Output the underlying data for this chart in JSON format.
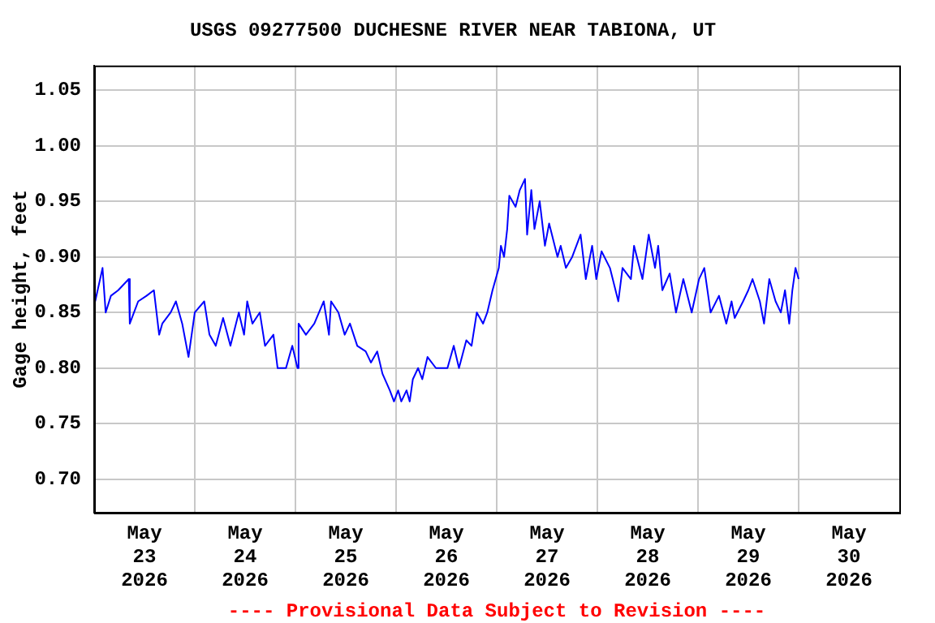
{
  "chart_data": {
    "type": "line",
    "title": "USGS 09277500 DUCHESNE RIVER NEAR TABIONA, UT",
    "ylabel": "Gage height, feet",
    "annotations": [
      "---- Provisional Data Subject to Revision ----"
    ],
    "xlim": [
      "2026-05-23T00:00",
      "2026-05-31T00:00"
    ],
    "xticks": [
      {
        "value": "2026-05-23T12:00",
        "label": "May\n23\n2026"
      },
      {
        "value": "2026-05-24T00:00",
        "label": null
      },
      {
        "value": "2026-05-24T12:00",
        "label": "May\n24\n2026"
      },
      {
        "value": "2026-05-25T00:00",
        "label": null
      },
      {
        "value": "2026-05-25T12:00",
        "label": "May\n25\n2026"
      },
      {
        "value": "2026-05-26T00:00",
        "label": null
      },
      {
        "value": "2026-05-26T12:00",
        "label": "May\n26\n2026"
      },
      {
        "value": "2026-05-27T00:00",
        "label": null
      },
      {
        "value": "2026-05-27T12:00",
        "label": "May\n27\n2026"
      },
      {
        "value": "2026-05-28T00:00",
        "label": null
      },
      {
        "value": "2026-05-28T12:00",
        "label": "May\n28\n2026"
      },
      {
        "value": "2026-05-29T00:00",
        "label": null
      },
      {
        "value": "2026-05-29T12:00",
        "label": "May\n29\n2026"
      },
      {
        "value": "2026-05-30T00:00",
        "label": null
      },
      {
        "value": "2026-05-30T12:00",
        "label": "May\n30\n2026"
      }
    ],
    "ylim": [
      0.67,
      1.072
    ],
    "yticks": [
      {
        "value": 0.7,
        "label": "0.70"
      },
      {
        "value": 0.75,
        "label": "0.75"
      },
      {
        "value": 0.8,
        "label": "0.80"
      },
      {
        "value": 0.85,
        "label": "0.85"
      },
      {
        "value": 0.9,
        "label": "0.90"
      },
      {
        "value": 0.95,
        "label": "0.95"
      },
      {
        "value": 1.0,
        "label": "1.00"
      },
      {
        "value": 1.05,
        "label": "1.05"
      }
    ],
    "grid": true,
    "legend": false,
    "marker": "none",
    "line_style": "solid",
    "series": [
      {
        "color": "#0000ff",
        "x": [
          "2026-05-23T00:15",
          "2026-05-23T02:00",
          "2026-05-23T02:45",
          "2026-05-23T04:00",
          "2026-05-23T05:45",
          "2026-05-23T08:15",
          "2026-05-23T08:30",
          "2026-05-23T10:30",
          "2026-05-23T12:30",
          "2026-05-23T14:15",
          "2026-05-23T15:30",
          "2026-05-23T16:15",
          "2026-05-23T18:15",
          "2026-05-23T19:30",
          "2026-05-23T21:00",
          "2026-05-23T22:30",
          "2026-05-24T00:00",
          "2026-05-24T02:15",
          "2026-05-24T03:30",
          "2026-05-24T05:00",
          "2026-05-24T06:45",
          "2026-05-24T08:30",
          "2026-05-24T10:30",
          "2026-05-24T11:45",
          "2026-05-24T12:30",
          "2026-05-24T13:45",
          "2026-05-24T15:30",
          "2026-05-24T16:45",
          "2026-05-24T18:45",
          "2026-05-24T19:45",
          "2026-05-24T21:45",
          "2026-05-24T23:15",
          "2026-05-25T00:30",
          "2026-05-25T00:45",
          "2026-05-25T02:30",
          "2026-05-25T04:30",
          "2026-05-25T06:45",
          "2026-05-25T08:00",
          "2026-05-25T08:30",
          "2026-05-25T10:15",
          "2026-05-25T11:45",
          "2026-05-25T13:00",
          "2026-05-25T14:45",
          "2026-05-25T16:45",
          "2026-05-25T18:00",
          "2026-05-25T19:30",
          "2026-05-25T20:45",
          "2026-05-25T22:30",
          "2026-05-25T23:30",
          "2026-05-26T00:30",
          "2026-05-26T01:15",
          "2026-05-26T02:30",
          "2026-05-26T03:15",
          "2026-05-26T04:00",
          "2026-05-26T05:15",
          "2026-05-26T06:15",
          "2026-05-26T07:30",
          "2026-05-26T09:30",
          "2026-05-26T12:15",
          "2026-05-26T13:45",
          "2026-05-26T15:00",
          "2026-05-26T16:45",
          "2026-05-26T18:00",
          "2026-05-26T19:15",
          "2026-05-26T20:45",
          "2026-05-26T21:45",
          "2026-05-26T23:00",
          "2026-05-27T00:30",
          "2026-05-27T01:00",
          "2026-05-27T01:45",
          "2026-05-27T02:30",
          "2026-05-27T03:00",
          "2026-05-27T04:30",
          "2026-05-27T05:30",
          "2026-05-27T06:45",
          "2026-05-27T07:15",
          "2026-05-27T08:15",
          "2026-05-27T09:00",
          "2026-05-27T10:15",
          "2026-05-27T11:30",
          "2026-05-27T12:30",
          "2026-05-27T14:30",
          "2026-05-27T15:15",
          "2026-05-27T16:30",
          "2026-05-27T18:00",
          "2026-05-27T20:00",
          "2026-05-27T21:15",
          "2026-05-27T22:45",
          "2026-05-27T23:45",
          "2026-05-28T01:00",
          "2026-05-28T03:00",
          "2026-05-28T05:00",
          "2026-05-28T06:00",
          "2026-05-28T08:00",
          "2026-05-28T08:45",
          "2026-05-28T10:45",
          "2026-05-28T12:15",
          "2026-05-28T13:45",
          "2026-05-28T14:30",
          "2026-05-28T15:30",
          "2026-05-28T17:15",
          "2026-05-28T18:45",
          "2026-05-28T20:30",
          "2026-05-28T22:30",
          "2026-05-29T00:15",
          "2026-05-29T01:30",
          "2026-05-29T03:00",
          "2026-05-29T05:00",
          "2026-05-29T06:45",
          "2026-05-29T08:00",
          "2026-05-29T08:45",
          "2026-05-29T10:45",
          "2026-05-29T12:00",
          "2026-05-29T13:00",
          "2026-05-29T14:45",
          "2026-05-29T15:45",
          "2026-05-29T17:00",
          "2026-05-29T18:30",
          "2026-05-29T19:45",
          "2026-05-29T20:45",
          "2026-05-29T21:45",
          "2026-05-29T22:30",
          "2026-05-29T23:15",
          "2026-05-30T00:00"
        ],
        "values": [
          0.86,
          0.89,
          0.85,
          0.865,
          0.87,
          0.88,
          0.84,
          0.86,
          0.865,
          0.87,
          0.83,
          0.84,
          0.85,
          0.86,
          0.84,
          0.81,
          0.85,
          0.86,
          0.83,
          0.82,
          0.845,
          0.82,
          0.85,
          0.83,
          0.86,
          0.84,
          0.85,
          0.82,
          0.83,
          0.8,
          0.8,
          0.82,
          0.8,
          0.84,
          0.83,
          0.84,
          0.86,
          0.83,
          0.86,
          0.85,
          0.83,
          0.84,
          0.82,
          0.815,
          0.805,
          0.815,
          0.795,
          0.78,
          0.77,
          0.78,
          0.77,
          0.78,
          0.77,
          0.79,
          0.8,
          0.79,
          0.81,
          0.8,
          0.8,
          0.82,
          0.8,
          0.825,
          0.82,
          0.85,
          0.84,
          0.85,
          0.87,
          0.89,
          0.91,
          0.9,
          0.925,
          0.955,
          0.945,
          0.96,
          0.97,
          0.92,
          0.96,
          0.925,
          0.95,
          0.91,
          0.93,
          0.9,
          0.91,
          0.89,
          0.9,
          0.92,
          0.88,
          0.91,
          0.88,
          0.905,
          0.89,
          0.86,
          0.89,
          0.88,
          0.91,
          0.88,
          0.92,
          0.89,
          0.91,
          0.87,
          0.885,
          0.85,
          0.88,
          0.85,
          0.88,
          0.89,
          0.85,
          0.865,
          0.84,
          0.86,
          0.845,
          0.86,
          0.87,
          0.88,
          0.86,
          0.84,
          0.88,
          0.86,
          0.85,
          0.87,
          0.84,
          0.87,
          0.89,
          0.88
        ]
      }
    ]
  }
}
